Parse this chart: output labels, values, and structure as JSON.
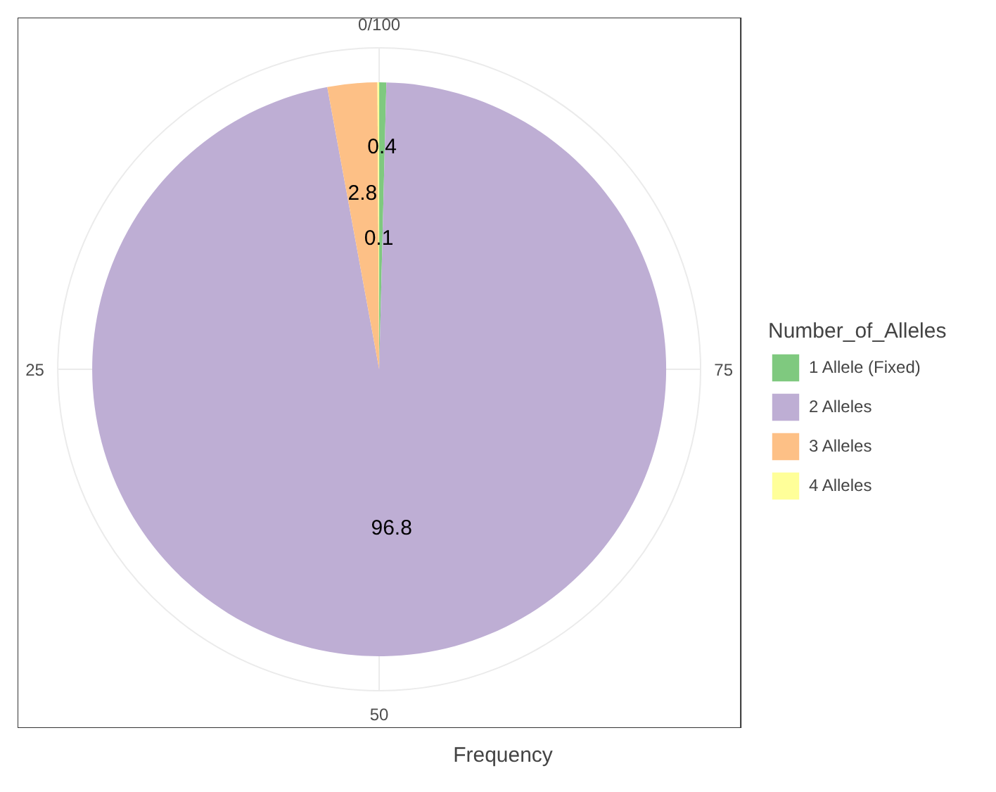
{
  "chart_data": {
    "type": "pie",
    "xlabel": "Frequency",
    "legend_title": "Number_of_Alleles",
    "legend": "right",
    "data_labels": true,
    "grid": true,
    "categories": [
      "1 Allele (Fixed)",
      "2 Alleles",
      "3 Alleles",
      "4 Alleles"
    ],
    "values": [
      0.4,
      96.8,
      2.8,
      0.1
    ],
    "colors": [
      "#7fc97f",
      "#beaed4",
      "#fdc086",
      "#ffff99"
    ],
    "annotations": [
      "0/100",
      "25",
      "50",
      "75"
    ]
  }
}
